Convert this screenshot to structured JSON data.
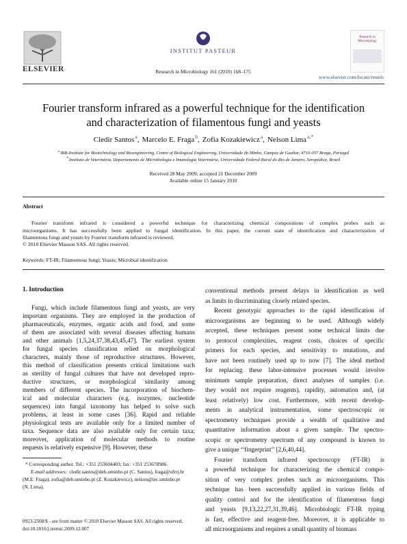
{
  "header": {
    "publisher": "ELSEVIER",
    "institute": "INSTITUT PASTEUR",
    "citation": "Research in Microbiology 161 (2010) 168–175",
    "url": "www.elsevier.com/locate/resmic",
    "cover_title": "Research in Microbiology"
  },
  "title": [
    "Fourier transform infrared as a powerful technique for the identification",
    "and characterization of filamentous fungi and yeasts"
  ],
  "authors": [
    {
      "name": "Cledir Santos",
      "affiliation": "a",
      "punct": ","
    },
    {
      "name": "Marcelo E. Fraga",
      "affiliation": "b",
      "punct": ","
    },
    {
      "name": "Zofia Kozakiewicz",
      "affiliation": "a",
      "punct": ","
    },
    {
      "name": "Nelson Lima",
      "affiliation": "a,*"
    }
  ],
  "affiliations": [
    {
      "label": "a",
      "text": "IBB-Institute for Biotechnology and Bioengineering, Centre of Biological Engineering, Universidade do Minho, Campus de Gualtar, 4710-057 Braga, Portugal"
    },
    {
      "label": "b",
      "text": "Instituto de Veterinária, Departamento de Microbiologia e Imunologia Veterinária, Universidade Federal Rural do Rio de Janeiro, Seropédica, Brazil"
    }
  ],
  "dates": [
    "Received 28 May 2009; accepted 21 December 2009",
    "Available online 15 January 2010"
  ],
  "abstract": {
    "heading": "Abstract",
    "lines": [
      "Fourier transform infrared is considered a powerful technique for characterizing chemical compositions of complex probes such as",
      "microorganisms. It has successfully been applied to fungal identification. In this paper, the current state of identification and characterization of",
      "filamentous fungi and yeasts by Fourier transform infrared is reviewed."
    ],
    "copyright": "© 2010 Elsevier Masson SAS. All rights reserved."
  },
  "keywords": {
    "label": "Keywords:",
    "text": "FT-IR; Filamentous fungi; Yeasts; Microbial identification"
  },
  "section_heading": "1. Introduction",
  "left_column": [
    [
      "Fungi, which include filamentous fungi and yeasts, are very",
      "important organisms. They are employed in the production of",
      "pharmaceuticals, enzymes, organic acids and food, and some",
      "of them are associated with several diseases affecting humans",
      "and other animals [1,5,24,37,38,43,45,47]. The earliest system",
      "for fungal species classification relied on morphological",
      "characters, mainly those of reproductive structures. However,",
      "this method of classification presents critical limitations such",
      "as sterility of fungal cultures that have not developed repro-",
      "ductive structures, or morphological similarity among",
      "members of different species. The incorporation of biochem-",
      "ical and molecular characters (e.g. isozymes, nucleotide",
      "sequences) into fungal taxonomy has helped to solve such",
      "problems, at least in some cases [36]. Rapid and reliable",
      "physiological tests are available only for a limited number of",
      "taxa. Sequence data are also available only for certain taxa;",
      "moreover, application of molecular methods to routine",
      "requests is relatively expensive [9]. However, these"
    ]
  ],
  "right_column": [
    [
      "conventional methods present delays in identification as well",
      "as limits in discriminating closely related species."
    ],
    [
      "Recent genotypic approaches to the rapid identification of",
      "microorganisms are beginning to be used. Although widely",
      "accepted, these techniques present some technical limits due",
      "to protocol complexities, reagent costs, choices of specific",
      "primers for each species, and sensitivity to mutations, and",
      "have not been routinely used up to now [7]. The ideal method",
      "for replacing these labor-intensive processes would involve",
      "minimum sample preparation, direct analyses of samples (i.e.",
      "they would not require reagents), rapidity, automation and, (at",
      "least relatively) low cost. Furthermore, with recent develop-",
      "ments in analytical instrumentation, some spectroscopic or",
      "spectrometry techniques provide a wealth of qualitative and",
      "quantitative information about a given sample. The spectro-",
      "scopic or spectrometry spectrum of any compound is known to",
      "give a unique ‘‘fingerprint’’ [2,6,40,44]."
    ],
    [
      "Fourier transform infrared spectroscopy (FT-IR) is",
      "a powerful technique for characterizing the chemical compo-",
      "sition of very complex probes such as microorganisms. This",
      "technique has been successfully applied in various fields of",
      "quality control and for the identification of filamentous fungi",
      "and yeasts [9,13,22,27,31,39,46]. Microbiologic FT-IR typing",
      "is fast, effective and reagent-free. Moreover, it is applicable to",
      "all microorganisms and requires a small quantity of biomass"
    ]
  ],
  "footnotes": {
    "corresponding": "* Corresponding author. Tel.: +351 253604403; fax: +351 253678986.",
    "email_label": "E-mail addresses:",
    "email_lines": [
      "cledir.santos@deb.uminho.pt (C. Santos), fraga@ufrrj.br",
      "(M.E. Fraga), zofia@deb.uminho.pt (Z. Kozakiewicz), nelson@iec.uminho.pt",
      "(N. Lima)."
    ]
  },
  "footer": [
    "0923-2508/$ - see front matter © 2010 Elsevier Masson SAS. All rights reserved.",
    "doi:10.1016/j.resmic.2009.12.007"
  ]
}
